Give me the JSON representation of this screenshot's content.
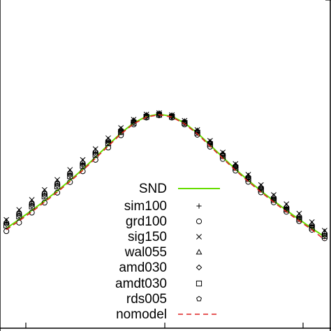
{
  "chart_data": {
    "type": "scatter",
    "title": "",
    "xlabel": "",
    "ylabel": "",
    "x": [
      -0.5,
      -0.46,
      -0.42,
      -0.38,
      -0.34,
      -0.3,
      -0.26,
      -0.22,
      -0.18,
      -0.14,
      -0.1,
      -0.06,
      -0.02,
      0.02,
      0.06,
      0.1,
      0.14,
      0.18,
      0.22,
      0.26,
      0.3,
      0.34,
      0.38,
      0.42,
      0.46,
      0.5
    ],
    "series": [
      {
        "name": "SND",
        "kind": "line",
        "color": "#66dd00",
        "dash": "solid",
        "values": [
          0.0,
          0.031,
          0.063,
          0.096,
          0.131,
          0.168,
          0.207,
          0.249,
          0.292,
          0.334,
          0.369,
          0.392,
          0.4,
          0.392,
          0.369,
          0.334,
          0.292,
          0.249,
          0.207,
          0.168,
          0.131,
          0.096,
          0.063,
          0.031,
          0.0,
          -0.03
        ]
      },
      {
        "name": "sim100",
        "kind": "points",
        "marker": "plus",
        "values": [
          0.02,
          0.05,
          0.085,
          0.12,
          0.155,
          0.19,
          0.225,
          0.265,
          0.305,
          0.343,
          0.375,
          0.395,
          0.401,
          0.393,
          0.372,
          0.338,
          0.298,
          0.256,
          0.216,
          0.177,
          0.14,
          0.104,
          0.07,
          0.038,
          0.008,
          -0.02
        ]
      },
      {
        "name": "grd100",
        "kind": "points",
        "marker": "circle",
        "values": [
          -0.01,
          0.02,
          0.055,
          0.09,
          0.125,
          0.162,
          0.2,
          0.24,
          0.283,
          0.326,
          0.364,
          0.388,
          0.396,
          0.388,
          0.364,
          0.328,
          0.286,
          0.243,
          0.202,
          0.163,
          0.126,
          0.091,
          0.058,
          0.025,
          -0.005,
          -0.035
        ]
      },
      {
        "name": "sig150",
        "kind": "points",
        "marker": "cross",
        "values": [
          0.03,
          0.065,
          0.1,
          0.135,
          0.17,
          0.205,
          0.24,
          0.278,
          0.316,
          0.352,
          0.381,
          0.399,
          0.404,
          0.397,
          0.377,
          0.345,
          0.307,
          0.266,
          0.226,
          0.188,
          0.152,
          0.117,
          0.085,
          0.052,
          0.022,
          -0.008
        ]
      },
      {
        "name": "wal055",
        "kind": "points",
        "marker": "triangle",
        "values": [
          0.025,
          0.058,
          0.092,
          0.128,
          0.163,
          0.198,
          0.234,
          0.272,
          0.31,
          0.347,
          0.378,
          0.397,
          0.403,
          0.396,
          0.375,
          0.342,
          0.303,
          0.262,
          0.222,
          0.184,
          0.147,
          0.112,
          0.079,
          0.046,
          0.016,
          -0.012
        ]
      },
      {
        "name": "amd030",
        "kind": "points",
        "marker": "diamond",
        "values": [
          0.015,
          0.045,
          0.08,
          0.115,
          0.15,
          0.186,
          0.222,
          0.26,
          0.3,
          0.338,
          0.371,
          0.392,
          0.399,
          0.392,
          0.37,
          0.336,
          0.296,
          0.255,
          0.214,
          0.175,
          0.138,
          0.102,
          0.068,
          0.035,
          0.005,
          -0.025
        ]
      },
      {
        "name": "amdt030",
        "kind": "points",
        "marker": "square",
        "values": [
          0.01,
          0.042,
          0.077,
          0.112,
          0.147,
          0.183,
          0.219,
          0.258,
          0.298,
          0.337,
          0.37,
          0.391,
          0.398,
          0.391,
          0.369,
          0.335,
          0.295,
          0.253,
          0.212,
          0.173,
          0.136,
          0.1,
          0.066,
          0.033,
          0.003,
          -0.027
        ]
      },
      {
        "name": "rds005",
        "kind": "points",
        "marker": "pentagon",
        "values": [
          0.02,
          0.052,
          0.087,
          0.122,
          0.157,
          0.193,
          0.229,
          0.268,
          0.307,
          0.344,
          0.376,
          0.395,
          0.401,
          0.394,
          0.373,
          0.34,
          0.3,
          0.259,
          0.219,
          0.18,
          0.143,
          0.108,
          0.074,
          0.041,
          0.011,
          -0.018
        ]
      },
      {
        "name": "nomodel",
        "kind": "line",
        "color": "#dd2222",
        "dash": "dashed",
        "values": [
          -0.005,
          0.026,
          0.058,
          0.092,
          0.127,
          0.164,
          0.203,
          0.245,
          0.288,
          0.331,
          0.366,
          0.39,
          0.398,
          0.39,
          0.366,
          0.331,
          0.288,
          0.245,
          0.203,
          0.164,
          0.127,
          0.092,
          0.058,
          0.026,
          -0.005,
          -0.04
        ]
      }
    ],
    "ylim": [
      -0.35,
      0.8
    ],
    "xlim": [
      -0.52,
      0.52
    ],
    "grid": false,
    "legend_position": "lower-center"
  }
}
